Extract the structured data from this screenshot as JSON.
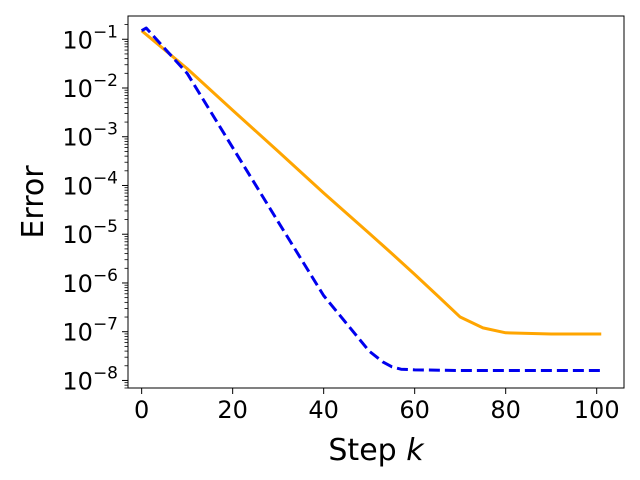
{
  "chart_data": {
    "type": "line",
    "xlabel": "Step k",
    "ylabel": "Error",
    "yscale": "log",
    "xlim": [
      -3,
      106
    ],
    "ylim": [
      7e-09,
      0.3
    ],
    "grid": false,
    "legend": "none",
    "x_ticks": [
      {
        "value": 0,
        "label": "0"
      },
      {
        "value": 20,
        "label": "20"
      },
      {
        "value": 40,
        "label": "40"
      },
      {
        "value": 60,
        "label": "60"
      },
      {
        "value": 80,
        "label": "80"
      },
      {
        "value": 100,
        "label": "100"
      }
    ],
    "y_ticks": [
      {
        "exp": -1,
        "base": "10",
        "power": "−1"
      },
      {
        "exp": -2,
        "base": "10",
        "power": "−2"
      },
      {
        "exp": -3,
        "base": "10",
        "power": "−3"
      },
      {
        "exp": -4,
        "base": "10",
        "power": "−4"
      },
      {
        "exp": -5,
        "base": "10",
        "power": "−5"
      },
      {
        "exp": -6,
        "base": "10",
        "power": "−6"
      },
      {
        "exp": -7,
        "base": "10",
        "power": "−7"
      },
      {
        "exp": -8,
        "base": "10",
        "power": "−8"
      }
    ],
    "series": [
      {
        "color": "#ffa500",
        "dash": "solid",
        "x": [
          0,
          10,
          20,
          30,
          40,
          50,
          55,
          60,
          65,
          70,
          75,
          80,
          90,
          101
        ],
        "y": [
          0.15,
          0.025,
          0.0035,
          0.0005,
          7e-05,
          1.05e-05,
          4e-06,
          1.5e-06,
          5.5e-07,
          2e-07,
          1.2e-07,
          9.5e-08,
          9e-08,
          9e-08
        ]
      },
      {
        "color": "#0000ee",
        "dash": "dashed",
        "x": [
          0,
          1,
          10,
          20,
          30,
          40,
          50,
          53,
          55,
          57,
          60,
          70,
          80,
          90,
          101
        ],
        "y": [
          0.15,
          0.17,
          0.02,
          0.0006,
          1.8e-05,
          5.5e-07,
          4e-08,
          2.4e-08,
          1.9e-08,
          1.7e-08,
          1.65e-08,
          1.6e-08,
          1.6e-08,
          1.6e-08,
          1.6e-08
        ]
      }
    ]
  }
}
